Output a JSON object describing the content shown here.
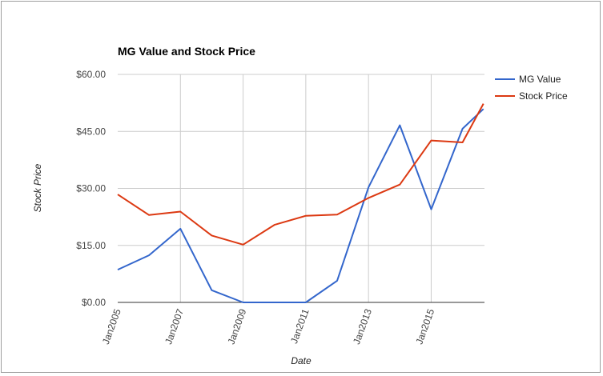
{
  "chart_data": {
    "type": "line",
    "title": "MG Value and Stock Price",
    "xlabel": "Date",
    "ylabel": "Stock Price",
    "x_tick_labels": [
      "Jan2005",
      "Jan2007",
      "Jan2009",
      "Jan2011",
      "Jan2013",
      "Jan2015"
    ],
    "y_tick_labels": [
      "$0.00",
      "$15.00",
      "$30.00",
      "$45.00",
      "$60.00"
    ],
    "y_ticks": [
      0,
      15,
      30,
      45,
      60
    ],
    "ylim": [
      0,
      60
    ],
    "x_year_range": [
      2005,
      2016.7
    ],
    "grid": true,
    "legend_position": "right",
    "series": [
      {
        "name": "MG Value",
        "color": "#3366cc",
        "x": [
          "2005-01",
          "2006-01",
          "2007-01",
          "2008-01",
          "2009-01",
          "2010-01",
          "2011-01",
          "2012-01",
          "2013-01",
          "2014-01",
          "2015-01",
          "2016-01",
          "2016-09"
        ],
        "values": [
          8.6,
          12.4,
          19.4,
          3.2,
          0.0,
          0.0,
          0.0,
          5.7,
          30.3,
          46.6,
          24.5,
          45.7,
          50.9
        ]
      },
      {
        "name": "Stock Price",
        "color": "#dc3912",
        "x": [
          "2005-01",
          "2006-01",
          "2007-01",
          "2008-01",
          "2009-01",
          "2010-01",
          "2011-01",
          "2012-01",
          "2013-01",
          "2014-01",
          "2015-01",
          "2016-01",
          "2016-09"
        ],
        "values": [
          28.4,
          23.0,
          23.9,
          17.6,
          15.2,
          20.4,
          22.8,
          23.1,
          27.5,
          31.0,
          42.6,
          42.1,
          52.3
        ]
      }
    ]
  }
}
